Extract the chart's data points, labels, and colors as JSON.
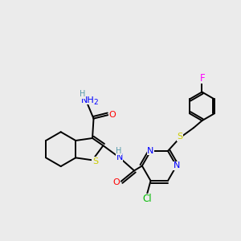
{
  "background_color": "#ebebeb",
  "atom_colors": {
    "N": "#0000ff",
    "O": "#ff0000",
    "S": "#cccc00",
    "F": "#ff00ff",
    "Cl": "#00bb00",
    "H": "#5599aa"
  },
  "line_color": "#000000",
  "line_width": 1.4,
  "figsize": [
    3.0,
    3.0
  ],
  "dpi": 100
}
